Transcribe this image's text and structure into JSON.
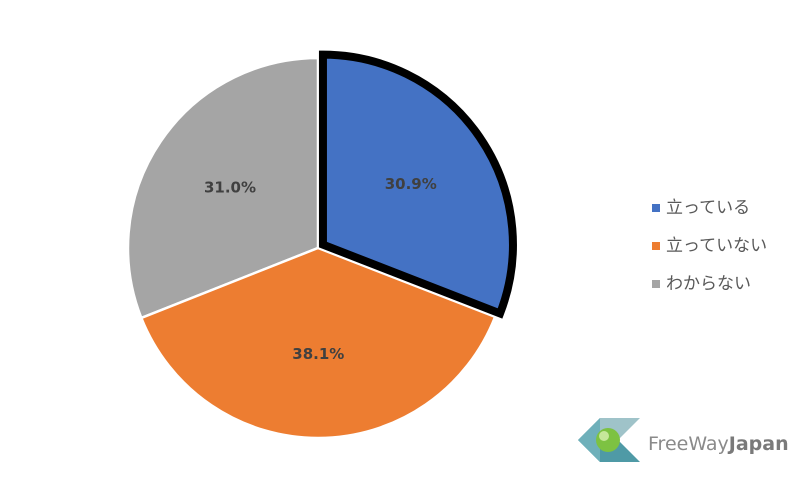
{
  "chart_data": {
    "type": "pie",
    "categories": [
      "立っている",
      "立っていない",
      "わからない"
    ],
    "values": [
      30.9,
      38.1,
      31.0
    ],
    "value_labels": [
      "30.9%",
      "38.1%",
      "31.0%"
    ],
    "colors": [
      "#4472c4",
      "#ed7d31",
      "#a5a5a5"
    ],
    "legend": "right"
  },
  "logo": {
    "parts": [
      "FreeWay",
      "Japan"
    ]
  }
}
